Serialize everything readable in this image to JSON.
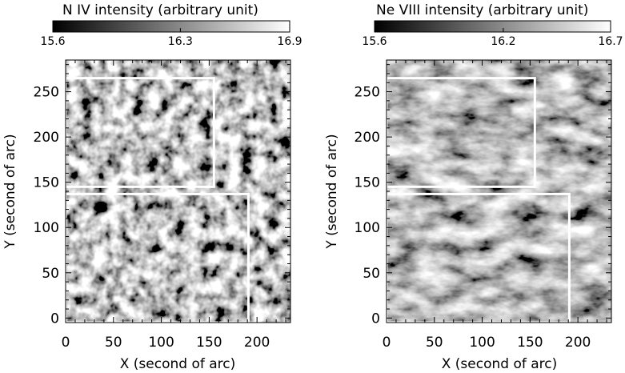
{
  "chart_data": [
    {
      "type": "heatmap",
      "title": "N IV intensity (arbitrary unit)",
      "colorbar": {
        "min": 15.6,
        "max": 16.9,
        "tick_labels": [
          "15.6",
          "16.3",
          "16.9"
        ],
        "ticks": [
          15.6,
          16.3,
          16.9
        ],
        "palette": "grayscale black-to-white"
      },
      "xlabel": "X (second of arc)",
      "ylabel": "Y (second of arc)",
      "xlim": [
        0,
        235
      ],
      "ylim": [
        -5,
        285
      ],
      "x_ticks": [
        0,
        50,
        100,
        150,
        200
      ],
      "y_ticks": [
        0,
        50,
        100,
        150,
        200,
        250
      ],
      "x_tick_labels": [
        "0",
        "50",
        "100",
        "150",
        "200"
      ],
      "y_tick_labels": [
        "0",
        "50",
        "100",
        "150",
        "200",
        "250"
      ],
      "grid": false,
      "annotations": [
        {
          "shape": "rectangle",
          "color": "#ffffff",
          "x_range": [
            0,
            155
          ],
          "y_range": [
            145,
            265
          ]
        },
        {
          "shape": "rectangle",
          "color": "#ffffff",
          "x_range": [
            0,
            191
          ],
          "y_range": [
            -5,
            137
          ]
        }
      ]
    },
    {
      "type": "heatmap",
      "title": "Ne VIII intensity (arbitrary unit)",
      "colorbar": {
        "min": 15.6,
        "max": 16.7,
        "tick_labels": [
          "15.6",
          "16.2",
          "16.7"
        ],
        "ticks": [
          15.6,
          16.2,
          16.7
        ],
        "palette": "grayscale black-to-white"
      },
      "xlabel": "X (second of arc)",
      "ylabel": "Y (second of arc)",
      "xlim": [
        0,
        235
      ],
      "ylim": [
        -5,
        285
      ],
      "x_ticks": [
        0,
        50,
        100,
        150,
        200
      ],
      "y_ticks": [
        0,
        50,
        100,
        150,
        200,
        250
      ],
      "x_tick_labels": [
        "0",
        "50",
        "100",
        "150",
        "200"
      ],
      "y_tick_labels": [
        "0",
        "50",
        "100",
        "150",
        "200",
        "250"
      ],
      "grid": false,
      "annotations": [
        {
          "shape": "rectangle",
          "color": "#ffffff",
          "x_range": [
            0,
            155
          ],
          "y_range": [
            145,
            265
          ]
        },
        {
          "shape": "rectangle",
          "color": "#ffffff",
          "x_range": [
            0,
            191
          ],
          "y_range": [
            -5,
            137
          ]
        }
      ]
    }
  ]
}
